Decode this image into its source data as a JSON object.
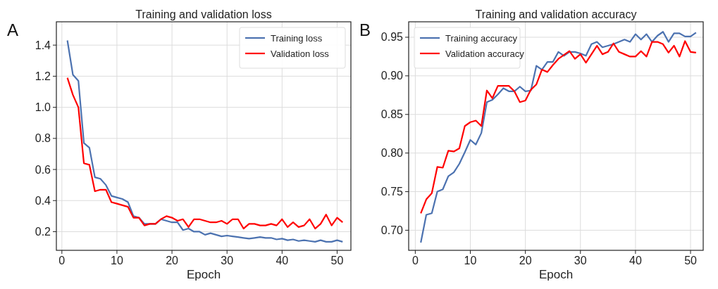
{
  "chart_data": [
    {
      "type": "line",
      "title": "Training and validation loss",
      "xlabel": "Epoch",
      "annotations": [
        "A"
      ],
      "x": [
        1,
        2,
        3,
        4,
        5,
        6,
        7,
        8,
        9,
        10,
        11,
        12,
        13,
        14,
        15,
        16,
        17,
        18,
        19,
        20,
        21,
        22,
        23,
        24,
        25,
        26,
        27,
        28,
        29,
        30,
        31,
        32,
        33,
        34,
        35,
        36,
        37,
        38,
        39,
        40,
        41,
        42,
        43,
        44,
        45,
        46,
        47,
        48,
        49,
        50,
        51
      ],
      "xlim": [
        -1,
        52.5
      ],
      "xticks": [
        0,
        10,
        20,
        30,
        40,
        50
      ],
      "ylim": [
        0.08,
        1.55
      ],
      "yticks": [
        {
          "value": 0.2,
          "label": "0.2"
        },
        {
          "value": 0.4,
          "label": "0.4"
        },
        {
          "value": 0.6,
          "label": "0.6"
        },
        {
          "value": 0.8,
          "label": "0.8"
        },
        {
          "value": 1.0,
          "label": "1.0"
        },
        {
          "value": 1.2,
          "label": "1.2"
        },
        {
          "value": 1.4,
          "label": "1.4"
        }
      ],
      "grid": true,
      "legend": "top right",
      "line_style": "solid",
      "series": [
        {
          "name": "Training loss",
          "color": "#4c72b0",
          "values": [
            1.43,
            1.21,
            1.17,
            0.77,
            0.74,
            0.55,
            0.54,
            0.5,
            0.43,
            0.42,
            0.41,
            0.39,
            0.3,
            0.29,
            0.25,
            0.25,
            0.25,
            0.28,
            0.27,
            0.26,
            0.26,
            0.21,
            0.22,
            0.2,
            0.2,
            0.18,
            0.19,
            0.18,
            0.17,
            0.175,
            0.17,
            0.165,
            0.16,
            0.155,
            0.16,
            0.165,
            0.16,
            0.16,
            0.15,
            0.155,
            0.145,
            0.15,
            0.14,
            0.145,
            0.14,
            0.135,
            0.145,
            0.135,
            0.135,
            0.145,
            0.135
          ]
        },
        {
          "name": "Validation loss",
          "color": "#ff0000",
          "values": [
            1.19,
            1.08,
            1.0,
            0.64,
            0.63,
            0.46,
            0.47,
            0.47,
            0.39,
            0.38,
            0.37,
            0.36,
            0.29,
            0.29,
            0.24,
            0.25,
            0.25,
            0.28,
            0.3,
            0.29,
            0.27,
            0.28,
            0.23,
            0.28,
            0.28,
            0.27,
            0.26,
            0.26,
            0.27,
            0.25,
            0.28,
            0.28,
            0.22,
            0.25,
            0.25,
            0.24,
            0.24,
            0.25,
            0.24,
            0.28,
            0.23,
            0.26,
            0.23,
            0.24,
            0.28,
            0.22,
            0.25,
            0.31,
            0.24,
            0.29,
            0.26
          ]
        }
      ]
    },
    {
      "type": "line",
      "title": "Training and validation accuracy",
      "xlabel": "Epoch",
      "annotations": [
        "B"
      ],
      "x": [
        1,
        2,
        3,
        4,
        5,
        6,
        7,
        8,
        9,
        10,
        11,
        12,
        13,
        14,
        15,
        16,
        17,
        18,
        19,
        20,
        21,
        22,
        23,
        24,
        25,
        26,
        27,
        28,
        29,
        30,
        31,
        32,
        33,
        34,
        35,
        36,
        37,
        38,
        39,
        40,
        41,
        42,
        43,
        44,
        45,
        46,
        47,
        48,
        49,
        50,
        51
      ],
      "xlim": [
        -1.2,
        52.3
      ],
      "xticks": [
        0,
        10,
        20,
        30,
        40,
        50
      ],
      "ylim": [
        0.674,
        0.97
      ],
      "yticks": [
        {
          "value": 0.7,
          "label": "0.70"
        },
        {
          "value": 0.75,
          "label": "0.75"
        },
        {
          "value": 0.8,
          "label": "0.80"
        },
        {
          "value": 0.85,
          "label": "0.85"
        },
        {
          "value": 0.9,
          "label": "0.90"
        },
        {
          "value": 0.95,
          "label": "0.95"
        }
      ],
      "grid": true,
      "legend": "top left",
      "line_style": "solid",
      "series": [
        {
          "name": "Training accuracy",
          "color": "#4c72b0",
          "values": [
            0.684,
            0.72,
            0.722,
            0.75,
            0.753,
            0.77,
            0.775,
            0.786,
            0.801,
            0.817,
            0.811,
            0.826,
            0.866,
            0.869,
            0.876,
            0.884,
            0.88,
            0.88,
            0.886,
            0.88,
            0.881,
            0.913,
            0.908,
            0.918,
            0.918,
            0.931,
            0.926,
            0.931,
            0.931,
            0.929,
            0.926,
            0.941,
            0.944,
            0.937,
            0.939,
            0.941,
            0.944,
            0.947,
            0.944,
            0.954,
            0.947,
            0.954,
            0.944,
            0.952,
            0.957,
            0.944,
            0.955,
            0.955,
            0.951,
            0.951,
            0.956
          ]
        },
        {
          "name": "Validation accuracy",
          "color": "#ff0000",
          "values": [
            0.722,
            0.74,
            0.748,
            0.782,
            0.781,
            0.803,
            0.802,
            0.806,
            0.835,
            0.84,
            0.842,
            0.835,
            0.881,
            0.871,
            0.887,
            0.887,
            0.887,
            0.88,
            0.866,
            0.868,
            0.882,
            0.889,
            0.908,
            0.905,
            0.914,
            0.922,
            0.927,
            0.932,
            0.922,
            0.928,
            0.917,
            0.928,
            0.939,
            0.928,
            0.931,
            0.942,
            0.931,
            0.928,
            0.925,
            0.925,
            0.932,
            0.925,
            0.944,
            0.944,
            0.941,
            0.93,
            0.939,
            0.925,
            0.945,
            0.931,
            0.93
          ]
        }
      ]
    }
  ]
}
